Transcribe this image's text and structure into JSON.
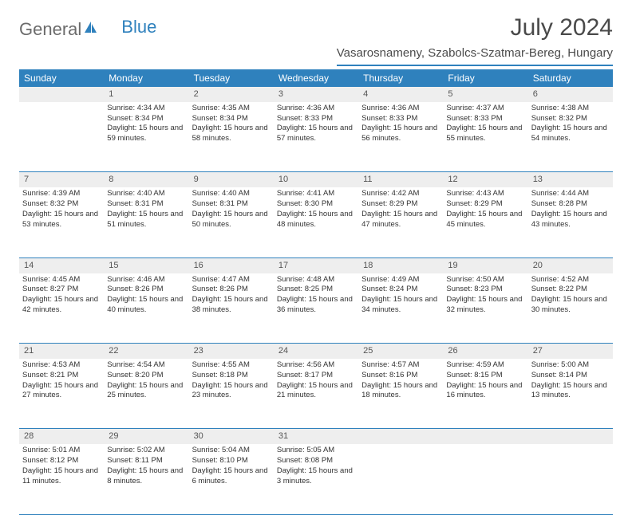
{
  "logo": {
    "general": "General",
    "blue": "Blue"
  },
  "title": "July 2024",
  "location": "Vasarosnameny, Szabolcs-Szatmar-Bereg, Hungary",
  "colors": {
    "header_bg": "#2f81bd",
    "header_text": "#ffffff",
    "daynum_bg": "#eeeeee",
    "border": "#2f81bd",
    "body_text": "#333333"
  },
  "weekdays": [
    "Sunday",
    "Monday",
    "Tuesday",
    "Wednesday",
    "Thursday",
    "Friday",
    "Saturday"
  ],
  "weeks": [
    {
      "nums": [
        "",
        "1",
        "2",
        "3",
        "4",
        "5",
        "6"
      ],
      "cells": [
        {
          "sunrise": "",
          "sunset": "",
          "daylight": ""
        },
        {
          "sunrise": "Sunrise: 4:34 AM",
          "sunset": "Sunset: 8:34 PM",
          "daylight": "Daylight: 15 hours and 59 minutes."
        },
        {
          "sunrise": "Sunrise: 4:35 AM",
          "sunset": "Sunset: 8:34 PM",
          "daylight": "Daylight: 15 hours and 58 minutes."
        },
        {
          "sunrise": "Sunrise: 4:36 AM",
          "sunset": "Sunset: 8:33 PM",
          "daylight": "Daylight: 15 hours and 57 minutes."
        },
        {
          "sunrise": "Sunrise: 4:36 AM",
          "sunset": "Sunset: 8:33 PM",
          "daylight": "Daylight: 15 hours and 56 minutes."
        },
        {
          "sunrise": "Sunrise: 4:37 AM",
          "sunset": "Sunset: 8:33 PM",
          "daylight": "Daylight: 15 hours and 55 minutes."
        },
        {
          "sunrise": "Sunrise: 4:38 AM",
          "sunset": "Sunset: 8:32 PM",
          "daylight": "Daylight: 15 hours and 54 minutes."
        }
      ]
    },
    {
      "nums": [
        "7",
        "8",
        "9",
        "10",
        "11",
        "12",
        "13"
      ],
      "cells": [
        {
          "sunrise": "Sunrise: 4:39 AM",
          "sunset": "Sunset: 8:32 PM",
          "daylight": "Daylight: 15 hours and 53 minutes."
        },
        {
          "sunrise": "Sunrise: 4:40 AM",
          "sunset": "Sunset: 8:31 PM",
          "daylight": "Daylight: 15 hours and 51 minutes."
        },
        {
          "sunrise": "Sunrise: 4:40 AM",
          "sunset": "Sunset: 8:31 PM",
          "daylight": "Daylight: 15 hours and 50 minutes."
        },
        {
          "sunrise": "Sunrise: 4:41 AM",
          "sunset": "Sunset: 8:30 PM",
          "daylight": "Daylight: 15 hours and 48 minutes."
        },
        {
          "sunrise": "Sunrise: 4:42 AM",
          "sunset": "Sunset: 8:29 PM",
          "daylight": "Daylight: 15 hours and 47 minutes."
        },
        {
          "sunrise": "Sunrise: 4:43 AM",
          "sunset": "Sunset: 8:29 PM",
          "daylight": "Daylight: 15 hours and 45 minutes."
        },
        {
          "sunrise": "Sunrise: 4:44 AM",
          "sunset": "Sunset: 8:28 PM",
          "daylight": "Daylight: 15 hours and 43 minutes."
        }
      ]
    },
    {
      "nums": [
        "14",
        "15",
        "16",
        "17",
        "18",
        "19",
        "20"
      ],
      "cells": [
        {
          "sunrise": "Sunrise: 4:45 AM",
          "sunset": "Sunset: 8:27 PM",
          "daylight": "Daylight: 15 hours and 42 minutes."
        },
        {
          "sunrise": "Sunrise: 4:46 AM",
          "sunset": "Sunset: 8:26 PM",
          "daylight": "Daylight: 15 hours and 40 minutes."
        },
        {
          "sunrise": "Sunrise: 4:47 AM",
          "sunset": "Sunset: 8:26 PM",
          "daylight": "Daylight: 15 hours and 38 minutes."
        },
        {
          "sunrise": "Sunrise: 4:48 AM",
          "sunset": "Sunset: 8:25 PM",
          "daylight": "Daylight: 15 hours and 36 minutes."
        },
        {
          "sunrise": "Sunrise: 4:49 AM",
          "sunset": "Sunset: 8:24 PM",
          "daylight": "Daylight: 15 hours and 34 minutes."
        },
        {
          "sunrise": "Sunrise: 4:50 AM",
          "sunset": "Sunset: 8:23 PM",
          "daylight": "Daylight: 15 hours and 32 minutes."
        },
        {
          "sunrise": "Sunrise: 4:52 AM",
          "sunset": "Sunset: 8:22 PM",
          "daylight": "Daylight: 15 hours and 30 minutes."
        }
      ]
    },
    {
      "nums": [
        "21",
        "22",
        "23",
        "24",
        "25",
        "26",
        "27"
      ],
      "cells": [
        {
          "sunrise": "Sunrise: 4:53 AM",
          "sunset": "Sunset: 8:21 PM",
          "daylight": "Daylight: 15 hours and 27 minutes."
        },
        {
          "sunrise": "Sunrise: 4:54 AM",
          "sunset": "Sunset: 8:20 PM",
          "daylight": "Daylight: 15 hours and 25 minutes."
        },
        {
          "sunrise": "Sunrise: 4:55 AM",
          "sunset": "Sunset: 8:18 PM",
          "daylight": "Daylight: 15 hours and 23 minutes."
        },
        {
          "sunrise": "Sunrise: 4:56 AM",
          "sunset": "Sunset: 8:17 PM",
          "daylight": "Daylight: 15 hours and 21 minutes."
        },
        {
          "sunrise": "Sunrise: 4:57 AM",
          "sunset": "Sunset: 8:16 PM",
          "daylight": "Daylight: 15 hours and 18 minutes."
        },
        {
          "sunrise": "Sunrise: 4:59 AM",
          "sunset": "Sunset: 8:15 PM",
          "daylight": "Daylight: 15 hours and 16 minutes."
        },
        {
          "sunrise": "Sunrise: 5:00 AM",
          "sunset": "Sunset: 8:14 PM",
          "daylight": "Daylight: 15 hours and 13 minutes."
        }
      ]
    },
    {
      "nums": [
        "28",
        "29",
        "30",
        "31",
        "",
        "",
        ""
      ],
      "cells": [
        {
          "sunrise": "Sunrise: 5:01 AM",
          "sunset": "Sunset: 8:12 PM",
          "daylight": "Daylight: 15 hours and 11 minutes."
        },
        {
          "sunrise": "Sunrise: 5:02 AM",
          "sunset": "Sunset: 8:11 PM",
          "daylight": "Daylight: 15 hours and 8 minutes."
        },
        {
          "sunrise": "Sunrise: 5:04 AM",
          "sunset": "Sunset: 8:10 PM",
          "daylight": "Daylight: 15 hours and 6 minutes."
        },
        {
          "sunrise": "Sunrise: 5:05 AM",
          "sunset": "Sunset: 8:08 PM",
          "daylight": "Daylight: 15 hours and 3 minutes."
        },
        {
          "sunrise": "",
          "sunset": "",
          "daylight": ""
        },
        {
          "sunrise": "",
          "sunset": "",
          "daylight": ""
        },
        {
          "sunrise": "",
          "sunset": "",
          "daylight": ""
        }
      ]
    }
  ]
}
